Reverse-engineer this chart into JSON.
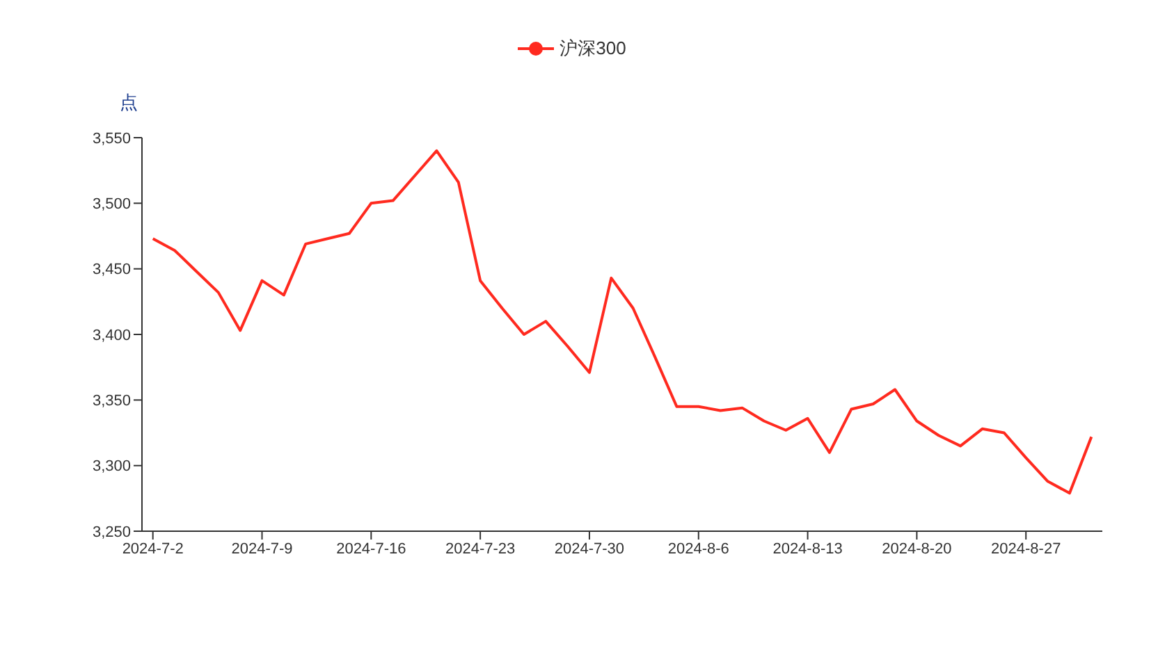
{
  "chart_data": {
    "type": "line",
    "ylabel": "点",
    "legend": "top",
    "categories": [
      "2024-7-2",
      null,
      null,
      null,
      null,
      "2024-7-9",
      null,
      null,
      null,
      null,
      "2024-7-16",
      null,
      null,
      null,
      null,
      "2024-7-23",
      null,
      null,
      null,
      null,
      "2024-7-30",
      null,
      null,
      null,
      null,
      "2024-8-6",
      null,
      null,
      null,
      null,
      "2024-8-13",
      null,
      null,
      null,
      null,
      "2024-8-20",
      null,
      null,
      null,
      null,
      "2024-8-27",
      null,
      null,
      null
    ],
    "series": [
      {
        "name": "沪深300",
        "color": "#ff2a1f",
        "values": [
          3473,
          3464,
          3448,
          3432,
          3403,
          3441,
          3430,
          3469,
          3473,
          3477,
          3500,
          3502,
          3521,
          3540,
          3516,
          3441,
          3420,
          3400,
          3410,
          3391,
          3371,
          3443,
          3420,
          3383,
          3345,
          3345,
          3342,
          3344,
          3334,
          3327,
          3336,
          3310,
          3343,
          3347,
          3358,
          3334,
          3323,
          3315,
          3328,
          3325,
          3306,
          3288,
          3279,
          3322
        ]
      }
    ],
    "ylim": [
      3250,
      3550
    ],
    "yticks": [
      {
        "value": 3250,
        "label": "3,250"
      },
      {
        "value": 3300,
        "label": "3,300"
      },
      {
        "value": 3350,
        "label": "3,350"
      },
      {
        "value": 3400,
        "label": "3,400"
      },
      {
        "value": 3450,
        "label": "3,450"
      },
      {
        "value": 3500,
        "label": "3,500"
      },
      {
        "value": 3550,
        "label": "3,550"
      }
    ],
    "grid": false
  }
}
